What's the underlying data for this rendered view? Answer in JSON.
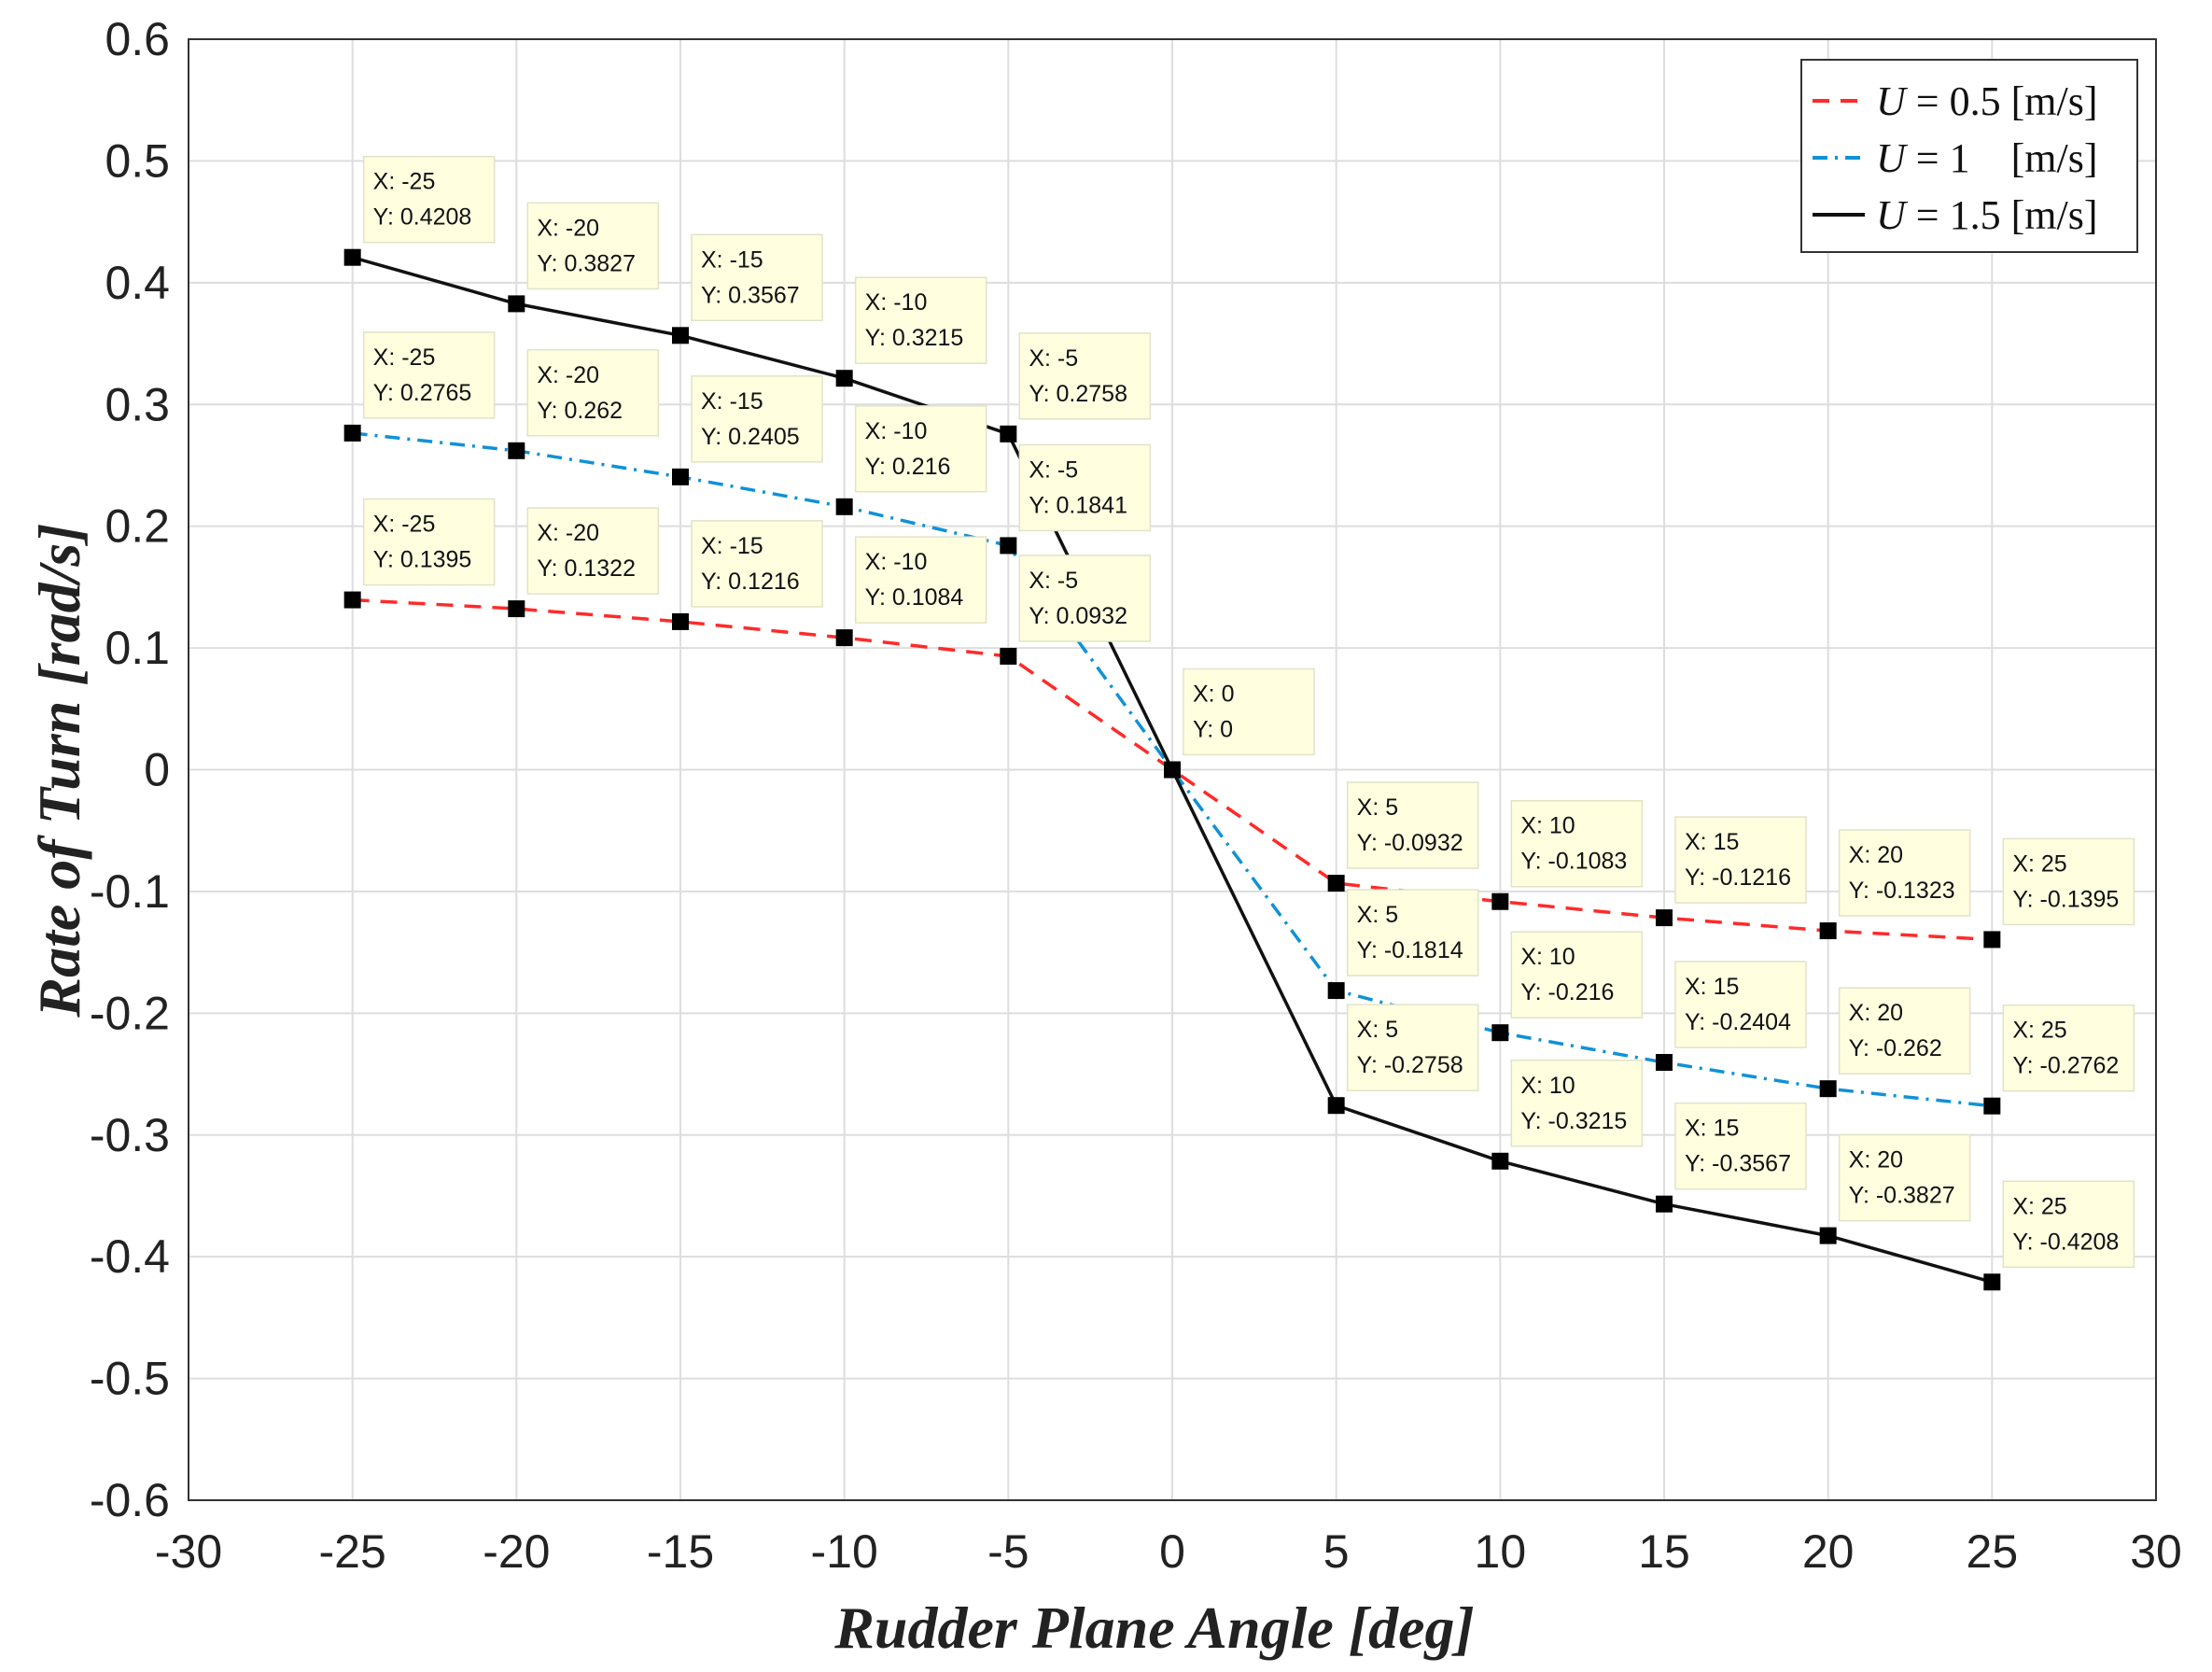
{
  "chart_data": {
    "type": "line",
    "xlabel": "Rudder Plane Angle  [deg]",
    "ylabel": "Rate of Turn  [rad/s]",
    "xlim": [
      -30,
      30
    ],
    "ylim": [
      -0.6,
      0.6
    ],
    "x_ticks": [
      "-30",
      "-25",
      "-20",
      "-15",
      "-10",
      "-5",
      "0",
      "5",
      "10",
      "15",
      "20",
      "25",
      "30"
    ],
    "y_ticks": [
      "0.6",
      "0.5",
      "0.4",
      "0.3",
      "0.2",
      "0.1",
      "0",
      "-0.1",
      "-0.2",
      "-0.3",
      "-0.4",
      "-0.5",
      "-0.6"
    ],
    "grid": true,
    "legend_position": "top-right",
    "x": [
      -25,
      -20,
      -15,
      -10,
      -5,
      0,
      5,
      10,
      15,
      20,
      25
    ],
    "series": [
      {
        "name": "U = 0.5 [m/s]",
        "legend_var": "U",
        "legend_rest": " = 0.5 [m/s]",
        "color": "#ff2a2a",
        "style": "dashed",
        "values": [
          0.1395,
          0.1322,
          0.1216,
          0.1084,
          0.0932,
          0,
          -0.0932,
          -0.1083,
          -0.1216,
          -0.1323,
          -0.1395
        ],
        "tip_labels": [
          [
            "X: -25",
            "Y: 0.1395"
          ],
          [
            "X: -20",
            "Y: 0.1322"
          ],
          [
            "X: -15",
            "Y: 0.1216"
          ],
          [
            "X: -10",
            "Y: 0.1084"
          ],
          [
            "X: -5",
            "Y: 0.0932"
          ],
          null,
          [
            "X: 5",
            "Y: -0.0932"
          ],
          [
            "X: 10",
            "Y: -0.1083"
          ],
          [
            "X: 15",
            "Y: -0.1216"
          ],
          [
            "X: 20",
            "Y: -0.1323"
          ],
          [
            "X: 25",
            "Y: -0.1395"
          ]
        ]
      },
      {
        "name": "U = 1    [m/s]",
        "legend_var": "U",
        "legend_rest": " = 1    [m/s]",
        "color": "#0f92d6",
        "style": "dashdot",
        "values": [
          0.2765,
          0.262,
          0.2405,
          0.216,
          0.1841,
          0,
          -0.1814,
          -0.216,
          -0.2404,
          -0.262,
          -0.2762
        ],
        "tip_labels": [
          [
            "X: -25",
            "Y: 0.2765"
          ],
          [
            "X: -20",
            "Y: 0.262"
          ],
          [
            "X: -15",
            "Y: 0.2405"
          ],
          [
            "X: -10",
            "Y: 0.216"
          ],
          [
            "X: -5",
            "Y: 0.1841"
          ],
          null,
          [
            "X: 5",
            "Y: -0.1814"
          ],
          [
            "X: 10",
            "Y: -0.216"
          ],
          [
            "X: 15",
            "Y: -0.2404"
          ],
          [
            "X: 20",
            "Y: -0.262"
          ],
          [
            "X: 25",
            "Y: -0.2762"
          ]
        ]
      },
      {
        "name": "U = 1.5 [m/s]",
        "legend_var": "U",
        "legend_rest": " = 1.5 [m/s]",
        "color": "#111111",
        "style": "solid",
        "values": [
          0.4208,
          0.3827,
          0.3567,
          0.3215,
          0.2758,
          0,
          -0.2758,
          -0.3215,
          -0.3567,
          -0.3827,
          -0.4208
        ],
        "tip_labels": [
          [
            "X: -25",
            "Y: 0.4208"
          ],
          [
            "X: -20",
            "Y: 0.3827"
          ],
          [
            "X: -15",
            "Y: 0.3567"
          ],
          [
            "X: -10",
            "Y: 0.3215"
          ],
          [
            "X: -5",
            "Y: 0.2758"
          ],
          [
            "X: 0",
            "Y: 0"
          ],
          [
            "X: 5",
            "Y: -0.2758"
          ],
          [
            "X: 10",
            "Y: -0.3215"
          ],
          [
            "X: 15",
            "Y: -0.3567"
          ],
          [
            "X: 20",
            "Y: -0.3827"
          ],
          [
            "X: 25",
            "Y: -0.4208"
          ]
        ]
      }
    ],
    "tip_box_color": "#ffffe0"
  }
}
